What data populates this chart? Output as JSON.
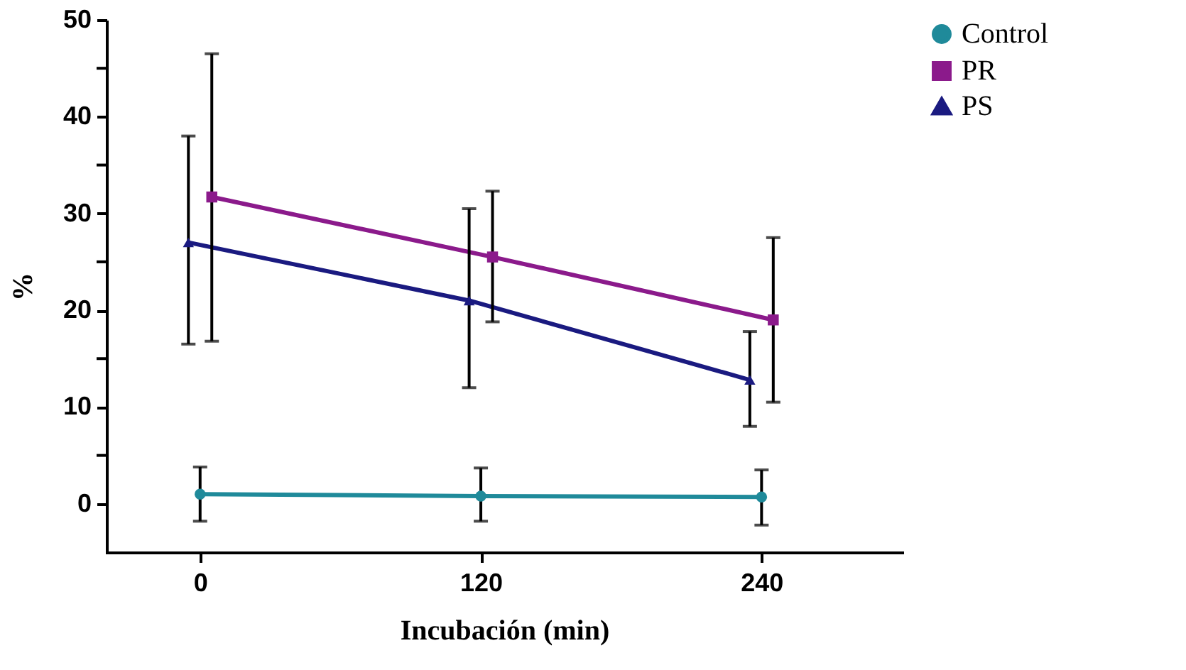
{
  "chart_data": {
    "type": "line",
    "xlabel": "Incubación (min)",
    "ylabel": "%",
    "xlim": [
      -40,
      300
    ],
    "xticks": [
      0,
      120,
      240
    ],
    "ylim": [
      -5,
      50
    ],
    "yticks": [
      0,
      {
        "value": 5,
        "label": null
      },
      10,
      {
        "value": 15,
        "label": null
      },
      20,
      {
        "value": 25,
        "label": null
      },
      30,
      {
        "value": 35,
        "label": null
      },
      40,
      {
        "value": 45,
        "label": null
      },
      50
    ],
    "grid": false,
    "legend": "right",
    "line_style": "solid",
    "series": [
      {
        "name": "Control",
        "color": "#1f8a9a",
        "marker": "circle",
        "x": [
          0,
          120,
          240
        ],
        "values": [
          1.0,
          0.8,
          0.7
        ],
        "errors": [
          [
            -1.8,
            3.8
          ],
          [
            -1.8,
            3.7
          ],
          [
            -2.2,
            3.5
          ]
        ]
      },
      {
        "name": "PR",
        "color": "#8b1a8b",
        "marker": "square",
        "x": [
          5,
          125,
          245
        ],
        "values": [
          31.7,
          25.5,
          19.0
        ],
        "errors": [
          [
            16.8,
            46.5
          ],
          [
            18.8,
            32.3
          ],
          [
            10.5,
            27.5
          ]
        ]
      },
      {
        "name": "PS",
        "color": "#1a1a80",
        "marker": "triangle",
        "x": [
          -5,
          115,
          235
        ],
        "values": [
          27.0,
          21.0,
          12.8
        ],
        "errors": [
          [
            16.5,
            38.0
          ],
          [
            12.0,
            30.5
          ],
          [
            8.0,
            17.8
          ]
        ]
      }
    ]
  }
}
